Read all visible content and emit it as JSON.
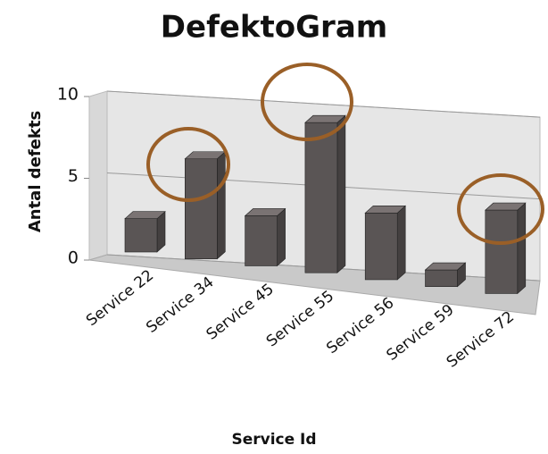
{
  "chart_data": {
    "type": "bar3d",
    "title": "DefektoGram",
    "x_label": "Service Id",
    "y_label": "Antal defekts",
    "categories": [
      "Service 22",
      "Service 34",
      "Service 45",
      "Service 55",
      "Service 56",
      "Service 59",
      "Service 72"
    ],
    "values": [
      2,
      6,
      3,
      9,
      4,
      1,
      5
    ],
    "color": "#5a5555",
    "ylim": [
      0,
      10
    ],
    "yticks": [
      0,
      5,
      10
    ],
    "grid": true
  }
}
